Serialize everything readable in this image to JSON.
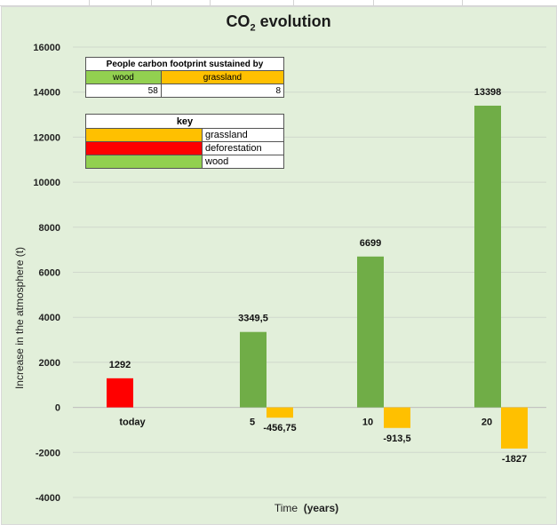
{
  "title_main": "CO",
  "title_sub": "2",
  "title_rest": " evolution",
  "ylabel": "Increase in the atmosphere  (t)",
  "xlabel_main": "Time",
  "xlabel_unit": "(years)",
  "footprint_table": {
    "header": "People carbon footprint sustained by",
    "col_wood": "wood",
    "col_grassland": "grassland",
    "val_wood": "58",
    "val_grassland": "8"
  },
  "key_table": {
    "header": "key",
    "items": [
      {
        "label": "grassland",
        "color": "#ffc000"
      },
      {
        "label": "deforestation",
        "color": "#ff0000"
      },
      {
        "label": "wood",
        "color": "#70ad47"
      }
    ]
  },
  "chart_data": {
    "type": "bar",
    "title": "CO2 evolution",
    "xlabel": "Time  (years)",
    "ylabel": "Increase in the atmosphere  (t)",
    "categories": [
      "today",
      "5",
      "10",
      "20"
    ],
    "ylim": [
      -4000,
      16000
    ],
    "yticks": [
      -4000,
      -2000,
      0,
      2000,
      4000,
      6000,
      8000,
      10000,
      12000,
      14000,
      16000
    ],
    "grid": true,
    "series": [
      {
        "color": "#ff0000",
        "values": [
          1292,
          null,
          null,
          null
        ],
        "labels": [
          "1292",
          null,
          null,
          null
        ]
      },
      {
        "color": "#70ad47",
        "values": [
          null,
          3349.5,
          6699,
          13398
        ],
        "labels": [
          null,
          "3349,5",
          "6699",
          "13398"
        ]
      },
      {
        "color": "#ffc000",
        "values": [
          null,
          -456.75,
          -913.5,
          -1827
        ],
        "labels": [
          null,
          "-456,75",
          "-913,5",
          "-1827"
        ]
      }
    ]
  }
}
